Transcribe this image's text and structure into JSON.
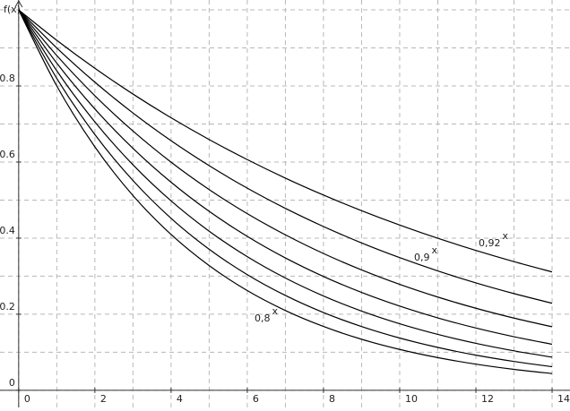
{
  "chart_data": {
    "type": "line",
    "y_label": "f(x)",
    "x": [
      0,
      1,
      2,
      3,
      4,
      5,
      6,
      7,
      8,
      9,
      10,
      11,
      12,
      13,
      14
    ],
    "series": [
      {
        "label": "0,8",
        "exponent": "x",
        "color": "#000000",
        "values": [
          1,
          0.8,
          0.64,
          0.512,
          0.4096,
          0.3277,
          0.2621,
          0.2097,
          0.1678,
          0.1342,
          0.1074,
          0.0859,
          0.0687,
          0.055,
          0.044
        ]
      },
      {
        "color": "#000000",
        "values": [
          1,
          0.82,
          0.6724,
          0.5514,
          0.4521,
          0.3707,
          0.304,
          0.2493,
          0.2044,
          0.1676,
          0.1374,
          0.1127,
          0.0924,
          0.0758,
          0.0621
        ]
      },
      {
        "color": "#000000",
        "values": [
          1,
          0.84,
          0.7056,
          0.5927,
          0.4979,
          0.4182,
          0.3513,
          0.2951,
          0.2479,
          0.2082,
          0.1749,
          0.1469,
          0.1234,
          0.1037,
          0.0871
        ]
      },
      {
        "color": "#000000",
        "values": [
          1,
          0.86,
          0.7396,
          0.6361,
          0.547,
          0.4704,
          0.4046,
          0.3479,
          0.2992,
          0.2573,
          0.2213,
          0.1903,
          0.1637,
          0.1408,
          0.1211
        ]
      },
      {
        "color": "#000000",
        "values": [
          1,
          0.88,
          0.7744,
          0.6815,
          0.5997,
          0.5277,
          0.4644,
          0.4087,
          0.3596,
          0.3165,
          0.2785,
          0.2451,
          0.2157,
          0.1898,
          0.167
        ]
      },
      {
        "label": "0,9",
        "exponent": "x",
        "color": "#000000",
        "values": [
          1,
          0.9,
          0.81,
          0.729,
          0.6561,
          0.5905,
          0.5314,
          0.4783,
          0.4305,
          0.3874,
          0.3487,
          0.3138,
          0.2824,
          0.2542,
          0.2288
        ]
      },
      {
        "label": "0,92",
        "exponent": "x",
        "color": "#000000",
        "values": [
          1,
          0.92,
          0.8464,
          0.7787,
          0.7164,
          0.6591,
          0.6064,
          0.5578,
          0.5132,
          0.4722,
          0.4344,
          0.3996,
          0.3677,
          0.3383,
          0.3112
        ]
      }
    ],
    "xlim": [
      -0.49,
      14.47
    ],
    "ylim": [
      -0.045,
      1.026
    ],
    "xticks": [
      0,
      2,
      4,
      6,
      8,
      10,
      12,
      14
    ],
    "yticks": [
      0,
      0.2,
      0.4,
      0.6,
      0.8
    ],
    "x_minor_grid": [
      1,
      3,
      5,
      7,
      9,
      11,
      13
    ],
    "y_minor_grid": [
      0.1,
      0.3,
      0.5,
      0.7,
      0.9,
      1
    ],
    "grid": true
  }
}
